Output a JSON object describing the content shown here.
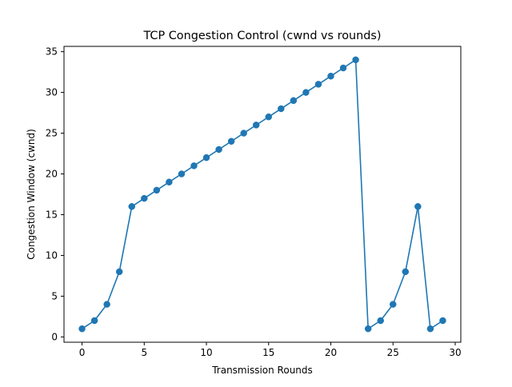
{
  "chart_data": {
    "type": "line",
    "title": "TCP Congestion Control (cwnd vs rounds)",
    "xlabel": "Transmission Rounds",
    "ylabel": "Congestion Window (cwnd)",
    "xlim": [
      -1.45,
      30.45
    ],
    "ylim": [
      -0.65,
      35.65
    ],
    "xticks": [
      0,
      5,
      10,
      15,
      20,
      25,
      30
    ],
    "yticks": [
      0,
      5,
      10,
      15,
      20,
      25,
      30,
      35
    ],
    "grid": false,
    "series": [
      {
        "color": "#1f77b4",
        "marker": "circle",
        "x": [
          0,
          1,
          2,
          3,
          4,
          5,
          6,
          7,
          8,
          9,
          10,
          11,
          12,
          13,
          14,
          15,
          16,
          17,
          18,
          19,
          20,
          21,
          22,
          23,
          24,
          25,
          26,
          27,
          28,
          29
        ],
        "y": [
          1,
          2,
          4,
          8,
          16,
          17,
          18,
          19,
          20,
          21,
          22,
          23,
          24,
          25,
          26,
          27,
          28,
          29,
          30,
          31,
          32,
          33,
          34,
          1,
          2,
          4,
          8,
          16,
          1,
          2
        ]
      }
    ]
  }
}
